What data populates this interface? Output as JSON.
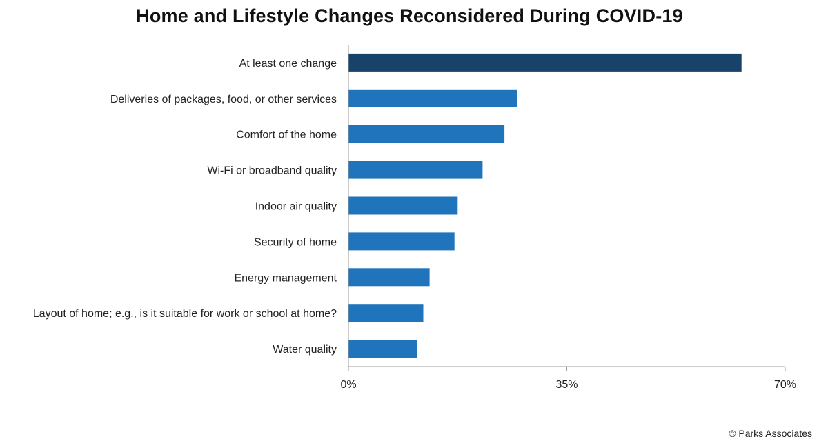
{
  "chart_data": {
    "type": "bar",
    "orientation": "horizontal",
    "title": "Home and Lifestyle Changes Reconsidered During COVID-19",
    "categories": [
      "At least one change",
      "Deliveries of packages, food, or other services",
      "Comfort of the home",
      "Wi-Fi or broadband quality",
      "Indoor air quality",
      "Security of home",
      "Energy management",
      "Layout of home; e.g., is it suitable for work or school at home?",
      "Water quality"
    ],
    "values": [
      63,
      27,
      25,
      21.5,
      17.5,
      17,
      13,
      12,
      11
    ],
    "xlim": [
      0,
      70
    ],
    "xticks": [
      "0%",
      "35%",
      "70%"
    ],
    "grid": false,
    "legend": "none",
    "colors": {
      "highlight": "#17436b",
      "bar": "#1f74bb",
      "axis": "#9a9a9a"
    }
  },
  "footer": {
    "copyright": "© Parks Associates"
  }
}
